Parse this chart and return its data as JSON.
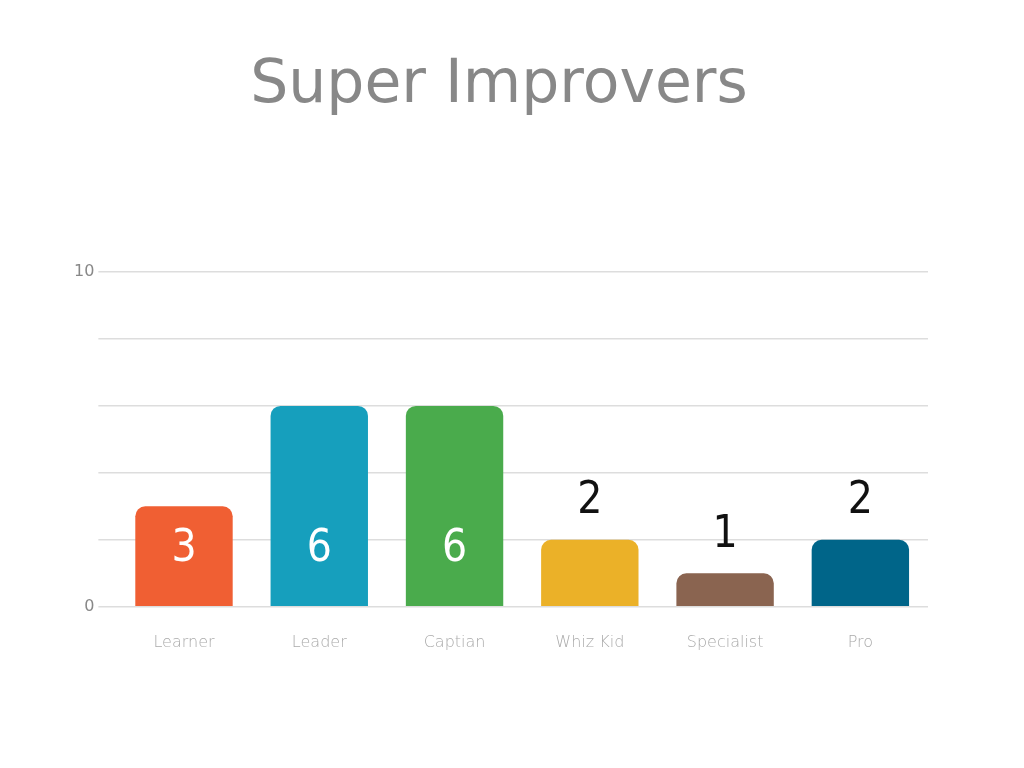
{
  "chart_data": {
    "type": "bar",
    "title": "Super Improvers",
    "categories": [
      "Learner",
      "Leader",
      "Captian",
      "Whiz Kid",
      "Specialist",
      "Pro"
    ],
    "values": [
      3,
      6,
      6,
      2,
      1,
      2
    ],
    "colors": [
      "#f05f33",
      "#169fbd",
      "#4aab4c",
      "#ebb128",
      "#8a6450",
      "#006589"
    ],
    "ylim": [
      0,
      10
    ],
    "yticks": [
      0,
      {
        "value": 2,
        "label": null
      },
      {
        "value": 4,
        "label": null
      },
      {
        "value": 6,
        "label": null
      },
      {
        "value": 8,
        "label": null
      },
      10
    ],
    "grid": "y",
    "data_labels": true,
    "legend": false
  }
}
